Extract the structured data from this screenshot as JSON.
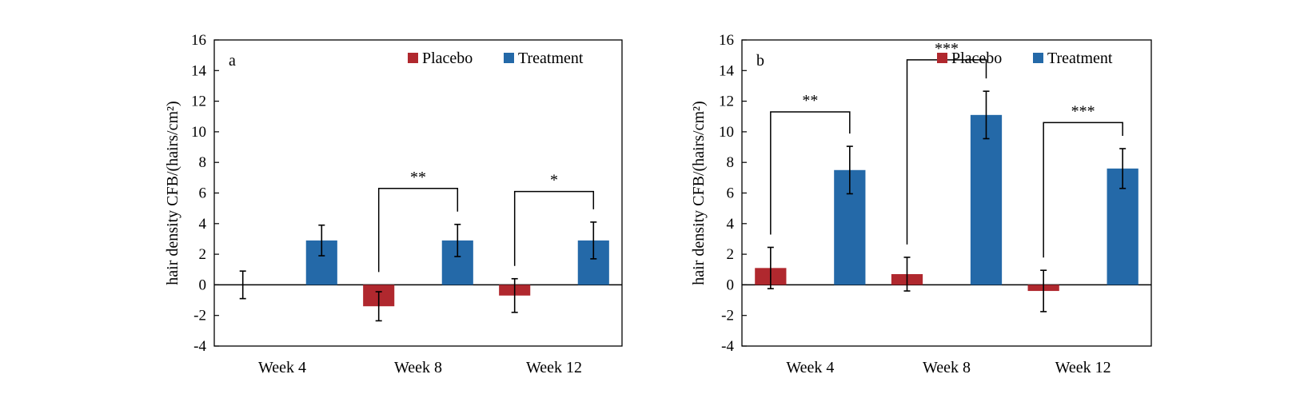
{
  "figure": {
    "background": "#ffffff"
  },
  "chart_data": [
    {
      "type": "bar",
      "panel_label": "a",
      "categories": [
        "Week 4",
        "Week 8",
        "Week 12"
      ],
      "ylabel": "hair density CFB/(hairs/cm²)",
      "ylim": [
        -4,
        16
      ],
      "yticks": [
        -4,
        -2,
        0,
        2,
        4,
        6,
        8,
        10,
        12,
        14,
        16
      ],
      "grid": false,
      "legend_position": "top-right",
      "series": [
        {
          "name": "Placebo",
          "color": "#b0282e",
          "values": [
            0.0,
            -1.4,
            -0.7
          ],
          "errors": [
            0.9,
            0.95,
            1.1
          ]
        },
        {
          "name": "Treatment",
          "color": "#2469a8",
          "values": [
            2.9,
            2.9,
            2.9
          ],
          "errors": [
            1.0,
            1.05,
            1.2
          ]
        }
      ],
      "significance": [
        {
          "category_index": 1,
          "label": "**",
          "y_top": 6.3
        },
        {
          "category_index": 2,
          "label": "*",
          "y_top": 6.1
        }
      ]
    },
    {
      "type": "bar",
      "panel_label": "b",
      "categories": [
        "Week 4",
        "Week 8",
        "Week 12"
      ],
      "ylabel": "hair density CFB/(hairs/cm²)",
      "ylim": [
        -4,
        16
      ],
      "yticks": [
        -4,
        -2,
        0,
        2,
        4,
        6,
        8,
        10,
        12,
        14,
        16
      ],
      "grid": false,
      "legend_position": "top-right",
      "series": [
        {
          "name": "Placebo",
          "color": "#b0282e",
          "values": [
            1.1,
            0.7,
            -0.4
          ],
          "errors": [
            1.35,
            1.1,
            1.35
          ]
        },
        {
          "name": "Treatment",
          "color": "#2469a8",
          "values": [
            7.5,
            11.1,
            7.6
          ],
          "errors": [
            1.55,
            1.55,
            1.3
          ]
        }
      ],
      "significance": [
        {
          "category_index": 0,
          "label": "**",
          "y_top": 11.3
        },
        {
          "category_index": 1,
          "label": "***",
          "y_top": 14.7
        },
        {
          "category_index": 2,
          "label": "***",
          "y_top": 10.6
        }
      ]
    }
  ]
}
